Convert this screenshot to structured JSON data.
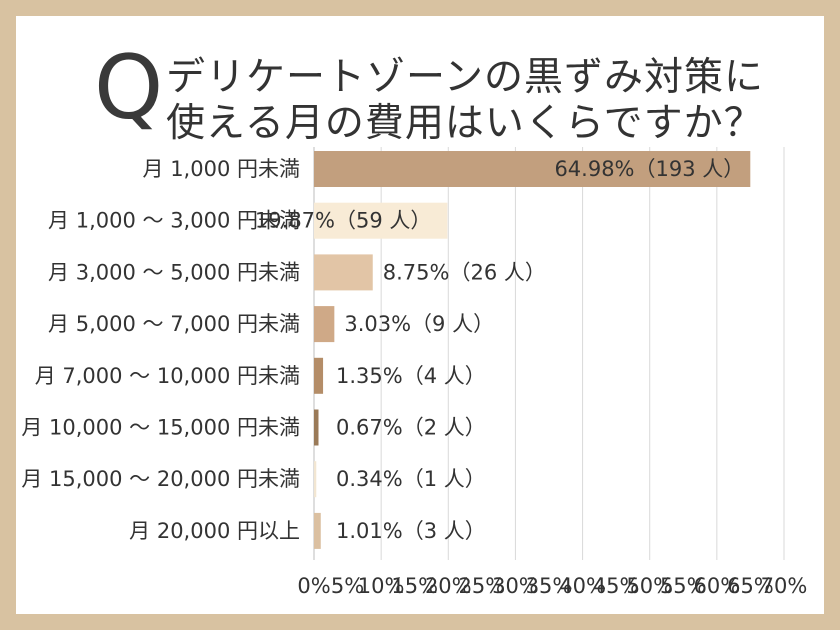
{
  "question_mark": "Q",
  "title_lines": [
    "デリケートゾーンの黒ずみ対策に",
    "使える月の費用はいくらですか？"
  ],
  "chart_data": {
    "type": "bar",
    "orientation": "horizontal",
    "title": "デリケートゾーンの黒ずみ対策に使える月の費用はいくらですか？",
    "categories": [
      "月 1,000 円未満",
      "月 1,000 ～ 3,000 円未満",
      "月 3,000 ～ 5,000 円未満",
      "月 5,000 ～ 7,000 円未満",
      "月 7,000 ～ 10,000 円未満",
      "月 10,000 ～ 15,000 円未満",
      "月 15,000 ～ 20,000 円未満",
      "月 20,000 円以上"
    ],
    "values": [
      64.98,
      19.87,
      8.75,
      3.03,
      1.35,
      0.67,
      0.34,
      1.01
    ],
    "data_labels": [
      "64.98%（193 人）",
      "19.87%（59 人）",
      "8.75%（26 人）",
      "3.03%（9 人）",
      "1.35%（4 人）",
      "0.67%（2 人）",
      "0.34%（1 人）",
      "1.01%（3 人）"
    ],
    "bar_colors": [
      "#c29f7e",
      "#f8ebd6",
      "#e2c5a6",
      "#cfa987",
      "#b48d68",
      "#9a7a58",
      "#f2e6d2",
      "#dbc0a1"
    ],
    "xlim": [
      0,
      70
    ],
    "ticks": [
      0,
      5,
      10,
      15,
      20,
      25,
      30,
      35,
      40,
      45,
      50,
      55,
      60,
      65,
      70
    ],
    "grid_ticks": [
      0,
      10,
      20,
      30,
      40,
      50,
      60,
      70
    ],
    "tick_labels": [
      "0%",
      "5%",
      "10%",
      "15%",
      "20%",
      "25%",
      "30%",
      "35%",
      "40%",
      "45%",
      "50%",
      "55%",
      "60%",
      "65%",
      "70%"
    ],
    "grid": true,
    "grid_color": "#d9d9d9",
    "xlabel": "",
    "ylabel": ""
  }
}
